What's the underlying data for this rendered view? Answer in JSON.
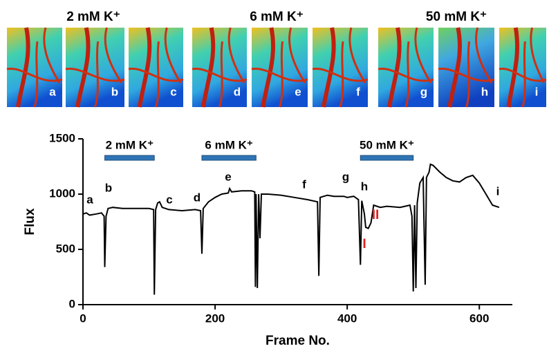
{
  "images": {
    "groups": [
      "2 mM K⁺",
      "6 mM K⁺",
      "50 mM K⁺"
    ],
    "letters": [
      "a",
      "b",
      "c",
      "d",
      "e",
      "f",
      "g",
      "h",
      "i"
    ]
  },
  "chart_data": {
    "type": "line",
    "xlabel": "Frame No.",
    "ylabel": "Flux",
    "color": "#000000",
    "x": [
      0,
      5,
      10,
      20,
      28,
      32,
      33,
      35,
      38,
      45,
      60,
      80,
      100,
      107,
      108,
      110,
      113,
      116,
      120,
      130,
      150,
      170,
      178,
      180,
      182,
      190,
      200,
      210,
      220,
      222,
      225,
      240,
      255,
      260,
      261,
      262,
      264,
      266,
      268,
      270,
      280,
      300,
      320,
      340,
      355,
      357,
      359,
      370,
      380,
      395,
      400,
      410,
      417,
      420,
      422,
      426,
      428,
      432,
      436,
      440,
      450,
      460,
      480,
      495,
      498,
      500,
      502,
      504,
      506,
      510,
      515,
      518,
      520,
      524,
      526,
      530,
      540,
      550,
      560,
      570,
      580,
      590,
      600,
      610,
      620,
      630
    ],
    "values": [
      820,
      830,
      810,
      820,
      830,
      800,
      340,
      800,
      870,
      880,
      870,
      870,
      870,
      860,
      90,
      860,
      920,
      930,
      880,
      860,
      850,
      860,
      850,
      460,
      870,
      930,
      970,
      1000,
      1010,
      1050,
      1020,
      1030,
      1030,
      1020,
      160,
      1000,
      150,
      1000,
      600,
      1000,
      1000,
      990,
      970,
      950,
      930,
      260,
      970,
      990,
      980,
      980,
      970,
      980,
      950,
      360,
      940,
      820,
      700,
      690,
      740,
      900,
      880,
      890,
      880,
      900,
      800,
      120,
      900,
      150,
      920,
      1100,
      1150,
      180,
      1150,
      1200,
      1270,
      1260,
      1200,
      1150,
      1120,
      1110,
      1150,
      1170,
      1100,
      1000,
      900,
      880
    ],
    "xlim": [
      0,
      650
    ],
    "ylim": [
      0,
      1500
    ],
    "xticks": [
      0,
      200,
      400,
      600
    ],
    "yticks": [
      0,
      500,
      1000,
      1500
    ],
    "periods": [
      {
        "label": "2 mM K⁺",
        "start": 33,
        "end": 108
      },
      {
        "label": "6 mM K⁺",
        "start": 180,
        "end": 262
      },
      {
        "label": "50 mM K⁺",
        "start": 420,
        "end": 500
      }
    ],
    "annotations": [
      "a",
      "b",
      "c",
      "d",
      "e",
      "f",
      "g",
      "h",
      "i"
    ],
    "phase_labels": [
      "I",
      "II"
    ]
  }
}
